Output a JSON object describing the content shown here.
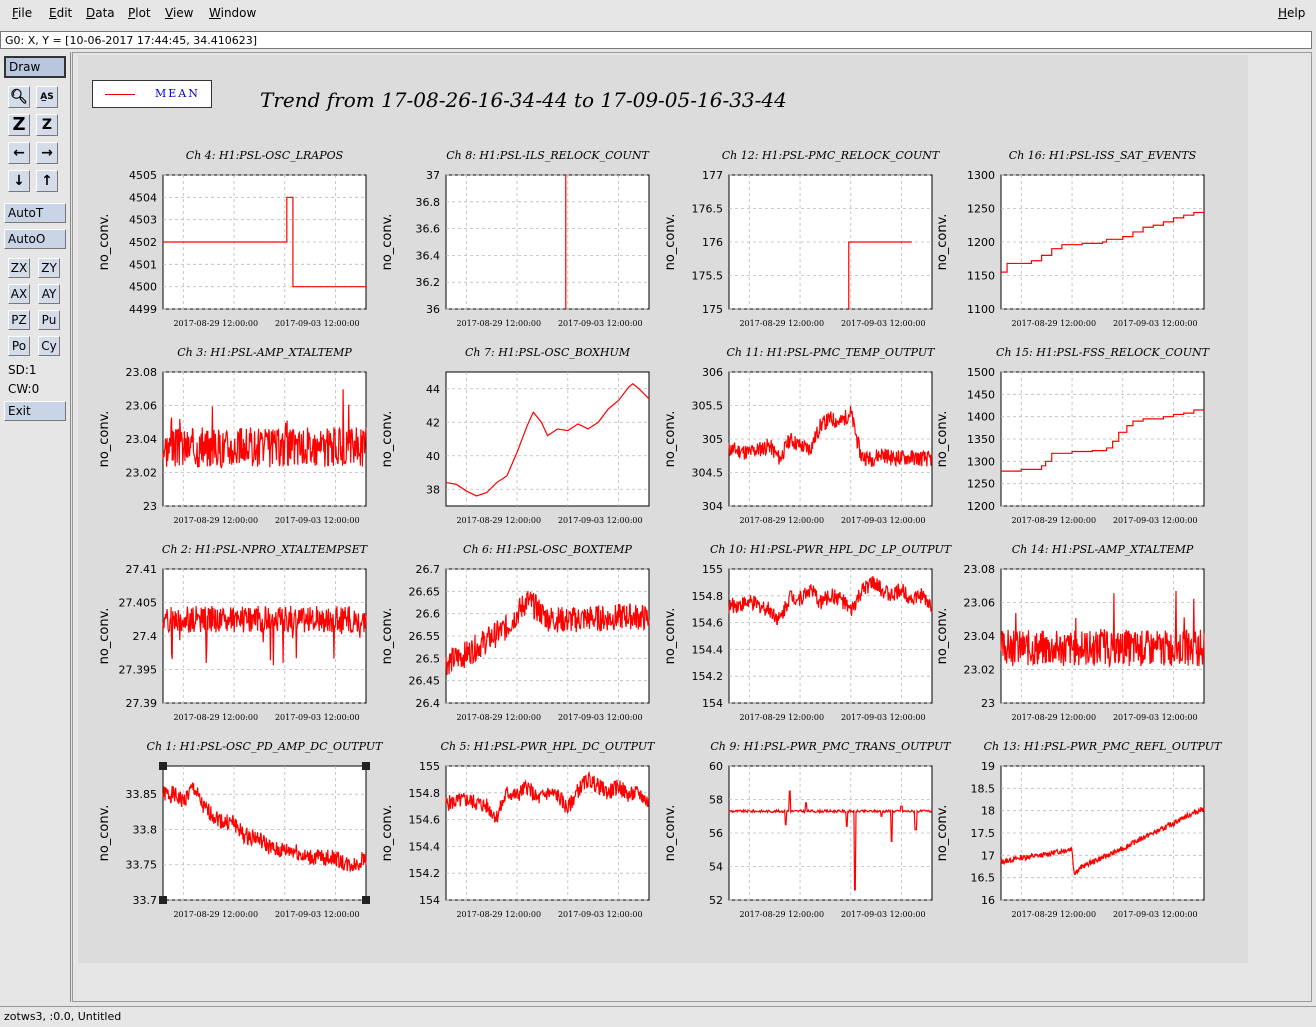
{
  "menu": [
    "File",
    "Edit",
    "Data",
    "Plot",
    "View",
    "Window"
  ],
  "help_label": "Help",
  "coord_readout": "G0: X, Y = [10-06-2017 17:44:45, 34.410623]",
  "toolbar": {
    "draw": "Draw",
    "autot": "AutoT",
    "autoo": "AutoO",
    "zx": "ZX",
    "zy": "ZY",
    "ax": "AX",
    "ay": "AY",
    "pz": "PZ",
    "pu": "Pu",
    "po": "Po",
    "cy": "Cy",
    "sd": "SD:1",
    "cw": "CW:0",
    "exit": "Exit"
  },
  "legend": {
    "label": "MEAN",
    "color": "#e00000"
  },
  "title": "Trend from 17-08-26-16-34-44 to 17-09-05-16-33-44",
  "status": "zotws3, :0.0, Untitled",
  "trace_color": "#ff0000",
  "chart_data": [
    {
      "type": "line",
      "title": "Ch 4: H1:PSL-OSC_LRAPOS",
      "ylabel": "no_conv.",
      "yticks": [
        "4499",
        "4500",
        "4501",
        "4502",
        "4503",
        "4504",
        "4505"
      ],
      "ylim": [
        4499,
        4505
      ],
      "xticks": [
        "2017-08-29 12:00:00",
        "2017-09-03 12:00:00"
      ],
      "style": "step",
      "x": [
        0,
        0.6,
        0.61,
        0.63,
        0.64,
        1
      ],
      "y": [
        4502,
        4502,
        4504,
        4504,
        4500,
        4500
      ]
    },
    {
      "type": "line",
      "title": "Ch 8: H1:PSL-ILS_RELOCK_COUNT",
      "ylabel": "no_conv.",
      "yticks": [
        "36",
        "36.2",
        "36.4",
        "36.6",
        "36.8",
        "37"
      ],
      "ylim": [
        36,
        37
      ],
      "xticks": [
        "2017-08-29 12:00:00",
        "2017-09-03 12:00:00"
      ],
      "style": "vline",
      "x": [
        0.59
      ],
      "y": [
        37
      ]
    },
    {
      "type": "line",
      "title": "Ch 12: H1:PSL-PMC_RELOCK_COUNT",
      "ylabel": "no_conv.",
      "yticks": [
        "175",
        "175.5",
        "176",
        "176.5",
        "177"
      ],
      "ylim": [
        175,
        177
      ],
      "xticks": [
        "2017-08-29 12:00:00",
        "2017-09-03 12:00:00"
      ],
      "style": "step",
      "x": [
        0.59,
        0.59,
        0.9
      ],
      "y": [
        175,
        176,
        176
      ]
    },
    {
      "type": "line",
      "title": "Ch 16: H1:PSL-ISS_SAT_EVENTS",
      "ylabel": "no_conv.",
      "yticks": [
        "1100",
        "1150",
        "1200",
        "1250",
        "1300"
      ],
      "ylim": [
        1100,
        1300
      ],
      "xticks": [
        "2017-08-29 12:00:00",
        "2017-09-03 12:00:00"
      ],
      "style": "step",
      "x": [
        0,
        0.03,
        0.15,
        0.2,
        0.25,
        0.3,
        0.4,
        0.5,
        0.52,
        0.6,
        0.65,
        0.7,
        0.75,
        0.8,
        0.85,
        0.9,
        0.95,
        1
      ],
      "y": [
        1155,
        1168,
        1172,
        1180,
        1190,
        1196,
        1198,
        1200,
        1204,
        1208,
        1215,
        1222,
        1225,
        1230,
        1236,
        1240,
        1244,
        1244
      ]
    },
    {
      "type": "line",
      "title": "Ch 3: H1:PSL-AMP_XTALTEMP",
      "ylabel": "no_conv.",
      "yticks": [
        "23",
        "23.02",
        "23.04",
        "23.06",
        "23.08"
      ],
      "ylim": [
        23,
        23.08
      ],
      "xticks": [
        "2017-08-29 12:00:00",
        "2017-09-03 12:00:00"
      ],
      "style": "noise",
      "base": 23.035,
      "amp": 0.012,
      "spike": 0.035,
      "seed": 3
    },
    {
      "type": "line",
      "title": "Ch 7: H1:PSL-OSC_BOXHUM",
      "ylabel": "no_conv.",
      "yticks": [
        "38",
        "40",
        "42",
        "44"
      ],
      "ylim": [
        37,
        45
      ],
      "xticks": [
        "2017-08-29 12:00:00",
        "2017-09-03 12:00:00"
      ],
      "style": "smooth",
      "x": [
        0,
        0.05,
        0.1,
        0.15,
        0.2,
        0.25,
        0.3,
        0.35,
        0.4,
        0.43,
        0.47,
        0.5,
        0.55,
        0.6,
        0.65,
        0.7,
        0.75,
        0.8,
        0.85,
        0.9,
        0.92,
        0.95,
        1
      ],
      "y": [
        38.4,
        38.3,
        37.9,
        37.6,
        37.8,
        38.4,
        38.8,
        40.2,
        41.8,
        42.6,
        42.0,
        41.2,
        41.6,
        41.5,
        41.9,
        41.6,
        42.0,
        42.8,
        43.3,
        44.1,
        44.3,
        44.0,
        43.4
      ]
    },
    {
      "type": "line",
      "title": "Ch 11: H1:PSL-PMC_TEMP_OUTPUT",
      "ylabel": "no_conv.",
      "yticks": [
        "304",
        "304.5",
        "305",
        "305.5",
        "306"
      ],
      "ylim": [
        304,
        306
      ],
      "xticks": [
        "2017-08-29 12:00:00",
        "2017-09-03 12:00:00"
      ],
      "style": "noisepath",
      "x": [
        0,
        0.1,
        0.2,
        0.25,
        0.3,
        0.35,
        0.4,
        0.45,
        0.5,
        0.55,
        0.6,
        0.63,
        0.65,
        0.7,
        0.75,
        0.8,
        0.9,
        1
      ],
      "y": [
        304.85,
        304.8,
        304.9,
        304.7,
        305.0,
        304.9,
        304.85,
        305.2,
        305.3,
        305.25,
        305.4,
        305.0,
        304.75,
        304.7,
        304.78,
        304.72,
        304.72,
        304.7
      ],
      "amp": 0.12,
      "seed": 11
    },
    {
      "type": "line",
      "title": "Ch 15: H1:PSL-FSS_RELOCK_COUNT",
      "ylabel": "no_conv.",
      "yticks": [
        "1200",
        "1250",
        "1300",
        "1350",
        "1400",
        "1450",
        "1500"
      ],
      "ylim": [
        1200,
        1500
      ],
      "xticks": [
        "2017-08-29 12:00:00",
        "2017-09-03 12:00:00"
      ],
      "style": "step",
      "x": [
        0,
        0.1,
        0.2,
        0.22,
        0.25,
        0.35,
        0.45,
        0.52,
        0.55,
        0.58,
        0.62,
        0.65,
        0.7,
        0.8,
        0.85,
        0.9,
        0.95,
        1
      ],
      "y": [
        1278,
        1282,
        1290,
        1300,
        1318,
        1322,
        1324,
        1330,
        1345,
        1365,
        1380,
        1390,
        1395,
        1400,
        1405,
        1408,
        1415,
        1415
      ]
    },
    {
      "type": "line",
      "title": "Ch 2: H1:PSL-NPRO_XTALTEMPSET",
      "ylabel": "no_conv.",
      "yticks": [
        "27.39",
        "27.395",
        "27.4",
        "27.405",
        "27.41"
      ],
      "ylim": [
        27.39,
        27.41
      ],
      "xticks": [
        "2017-08-29 12:00:00",
        "2017-09-03 12:00:00"
      ],
      "style": "noise",
      "base": 27.4025,
      "amp": 0.002,
      "spike": -0.007,
      "seed": 2
    },
    {
      "type": "line",
      "title": "Ch 6: H1:PSL-OSC_BOXTEMP",
      "ylabel": "no_conv.",
      "yticks": [
        "26.4",
        "26.45",
        "26.5",
        "26.55",
        "26.6",
        "26.65",
        "26.7"
      ],
      "ylim": [
        26.4,
        26.7
      ],
      "xticks": [
        "2017-08-29 12:00:00",
        "2017-09-03 12:00:00"
      ],
      "style": "noisepath",
      "x": [
        0,
        0.1,
        0.2,
        0.3,
        0.35,
        0.4,
        0.45,
        0.5,
        0.6,
        0.7,
        0.8,
        0.9,
        1
      ],
      "y": [
        26.49,
        26.51,
        26.54,
        26.57,
        26.6,
        26.63,
        26.61,
        26.59,
        26.585,
        26.59,
        26.59,
        26.595,
        26.59
      ],
      "amp": 0.03,
      "seed": 6
    },
    {
      "type": "line",
      "title": "Ch 10: H1:PSL-PWR_HPL_DC_LP_OUTPUT",
      "ylabel": "no_conv.",
      "yticks": [
        "154",
        "154.2",
        "154.4",
        "154.6",
        "154.8",
        "155"
      ],
      "ylim": [
        154,
        155
      ],
      "xticks": [
        "2017-08-29 12:00:00",
        "2017-09-03 12:00:00"
      ],
      "style": "noisepath",
      "x": [
        0,
        0.1,
        0.2,
        0.25,
        0.3,
        0.35,
        0.4,
        0.45,
        0.5,
        0.55,
        0.6,
        0.65,
        0.7,
        0.75,
        0.8,
        0.85,
        0.9,
        0.95,
        1
      ],
      "y": [
        154.72,
        154.75,
        154.7,
        154.62,
        154.8,
        154.78,
        154.85,
        154.75,
        154.8,
        154.78,
        154.68,
        154.82,
        154.9,
        154.85,
        154.8,
        154.85,
        154.78,
        154.8,
        154.72
      ],
      "amp": 0.06,
      "seed": 10
    },
    {
      "type": "line",
      "title": "Ch 14: H1:PSL-AMP_XTALTEMP",
      "ylabel": "no_conv.",
      "yticks": [
        "23",
        "23.02",
        "23.04",
        "23.06",
        "23.08"
      ],
      "ylim": [
        23,
        23.08
      ],
      "xticks": [
        "2017-08-29 12:00:00",
        "2017-09-03 12:00:00"
      ],
      "style": "noise",
      "base": 23.033,
      "amp": 0.011,
      "spike": 0.035,
      "seed": 14
    },
    {
      "type": "line",
      "title": "Ch 1: H1:PSL-OSC_PD_AMP_DC_OUTPUT",
      "ylabel": "no_conv.",
      "yticks": [
        "33.7",
        "33.75",
        "33.8",
        "33.85"
      ],
      "ylim": [
        33.7,
        33.89
      ],
      "xticks": [
        "2017-08-29 12:00:00",
        "2017-09-03 12:00:00"
      ],
      "style": "noisepath",
      "x": [
        0,
        0.05,
        0.1,
        0.15,
        0.2,
        0.25,
        0.3,
        0.35,
        0.4,
        0.45,
        0.5,
        0.55,
        0.6,
        0.65,
        0.7,
        0.75,
        0.8,
        0.85,
        0.9,
        0.95,
        1
      ],
      "y": [
        33.85,
        33.85,
        33.84,
        33.86,
        33.83,
        33.82,
        33.81,
        33.81,
        33.79,
        33.79,
        33.78,
        33.77,
        33.77,
        33.77,
        33.76,
        33.76,
        33.76,
        33.76,
        33.75,
        33.75,
        33.76
      ],
      "amp": 0.012,
      "seed": 1,
      "selected": true
    },
    {
      "type": "line",
      "title": "Ch 5: H1:PSL-PWR_HPL_DC_OUTPUT",
      "ylabel": "no_conv.",
      "yticks": [
        "154",
        "154.2",
        "154.4",
        "154.6",
        "154.8",
        "155"
      ],
      "ylim": [
        154,
        155
      ],
      "xticks": [
        "2017-08-29 12:00:00",
        "2017-09-03 12:00:00"
      ],
      "style": "noisepath",
      "x": [
        0,
        0.1,
        0.2,
        0.25,
        0.3,
        0.35,
        0.4,
        0.45,
        0.5,
        0.55,
        0.6,
        0.65,
        0.7,
        0.75,
        0.8,
        0.85,
        0.9,
        0.95,
        1
      ],
      "y": [
        154.72,
        154.75,
        154.7,
        154.62,
        154.8,
        154.78,
        154.85,
        154.75,
        154.8,
        154.78,
        154.68,
        154.82,
        154.9,
        154.85,
        154.8,
        154.85,
        154.78,
        154.8,
        154.72
      ],
      "amp": 0.06,
      "seed": 5
    },
    {
      "type": "line",
      "title": "Ch 9: H1:PSL-PWR_PMC_TRANS_OUTPUT",
      "ylabel": "no_conv.",
      "yticks": [
        "52",
        "54",
        "56",
        "58",
        "60"
      ],
      "ylim": [
        52,
        60
      ],
      "xticks": [
        "2017-08-29 12:00:00",
        "2017-09-03 12:00:00"
      ],
      "style": "flatspikes",
      "base": 57.3,
      "spikes": [
        [
          0.28,
          56.5
        ],
        [
          0.3,
          58.5
        ],
        [
          0.38,
          57.8
        ],
        [
          0.58,
          56.4
        ],
        [
          0.62,
          52.6
        ],
        [
          0.75,
          57.0
        ],
        [
          0.8,
          55.5
        ],
        [
          0.85,
          57.6
        ],
        [
          0.92,
          56.2
        ]
      ],
      "seed": 9
    },
    {
      "type": "line",
      "title": "Ch 13: H1:PSL-PWR_PMC_REFL_OUTPUT",
      "ylabel": "no_conv.",
      "yticks": [
        "16",
        "16.5",
        "17",
        "17.5",
        "18",
        "18.5",
        "19"
      ],
      "ylim": [
        16,
        19
      ],
      "xticks": [
        "2017-08-29 12:00:00",
        "2017-09-03 12:00:00"
      ],
      "style": "noisepath",
      "x": [
        0,
        0.1,
        0.2,
        0.3,
        0.35,
        0.36,
        0.4,
        0.5,
        0.6,
        0.7,
        0.8,
        0.9,
        1
      ],
      "y": [
        16.85,
        16.95,
        17.0,
        17.1,
        17.15,
        16.6,
        16.75,
        16.95,
        17.15,
        17.4,
        17.6,
        17.85,
        18.05
      ],
      "amp": 0.06,
      "seed": 13
    }
  ]
}
